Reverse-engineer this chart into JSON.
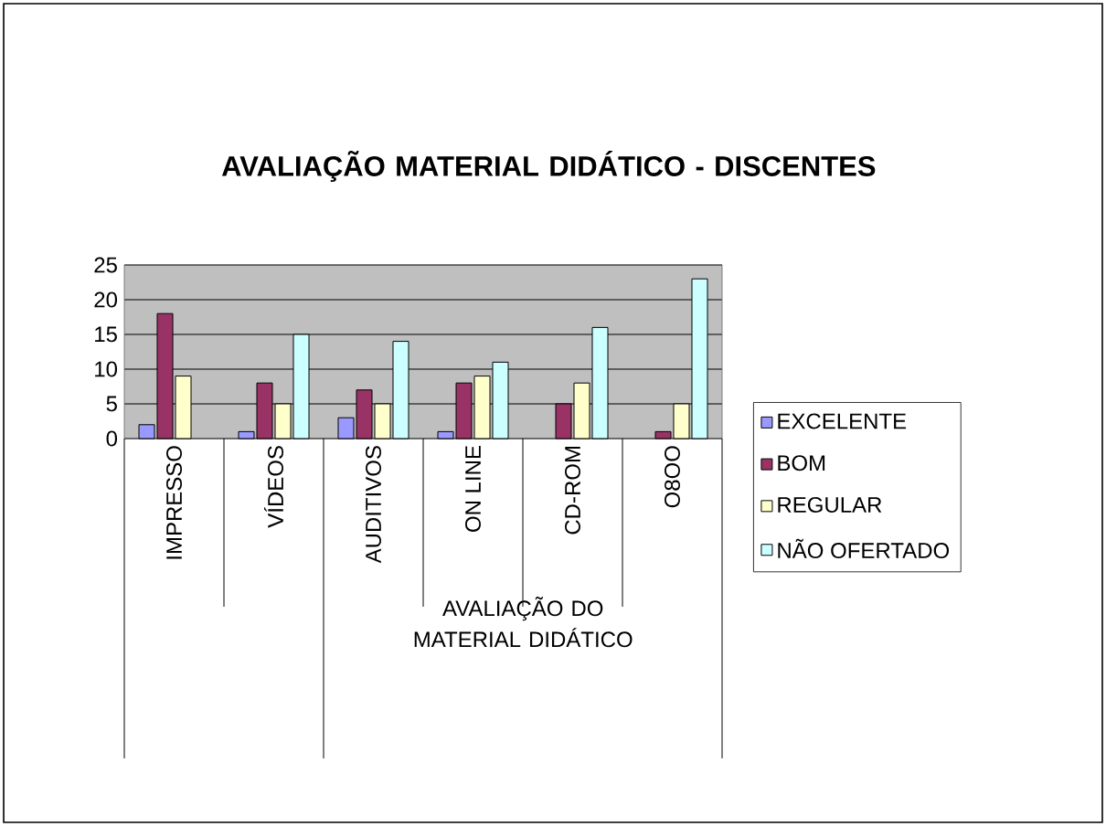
{
  "chart_data": {
    "type": "bar",
    "title": "AVALIAÇÃO MATERIAL DIDÁTICO - DISCENTES",
    "xlabel": "AVALIAÇÃO DO MATERIAL DIDÁTICO",
    "categories": [
      "IMPRESSO",
      "VÍDEOS",
      "AUDITIVOS",
      "ON LINE",
      "CD-ROM",
      "O8OO"
    ],
    "series": [
      {
        "name": "EXCELENTE",
        "color": "#9999ff",
        "values": [
          2,
          1,
          3,
          1,
          null,
          null
        ]
      },
      {
        "name": "BOM",
        "color": "#993366",
        "values": [
          18,
          8,
          7,
          8,
          5,
          1
        ]
      },
      {
        "name": "REGULAR",
        "color": "#ffffcc",
        "values": [
          9,
          5,
          5,
          9,
          8,
          5
        ]
      },
      {
        "name": "NÃO OFERTADO",
        "color": "#ccffff",
        "values": [
          null,
          15,
          14,
          11,
          16,
          23
        ]
      }
    ],
    "ylim": [
      0,
      25
    ],
    "yticks": [
      0,
      5,
      10,
      15,
      20,
      25
    ],
    "grid": "y",
    "legend": "right"
  }
}
